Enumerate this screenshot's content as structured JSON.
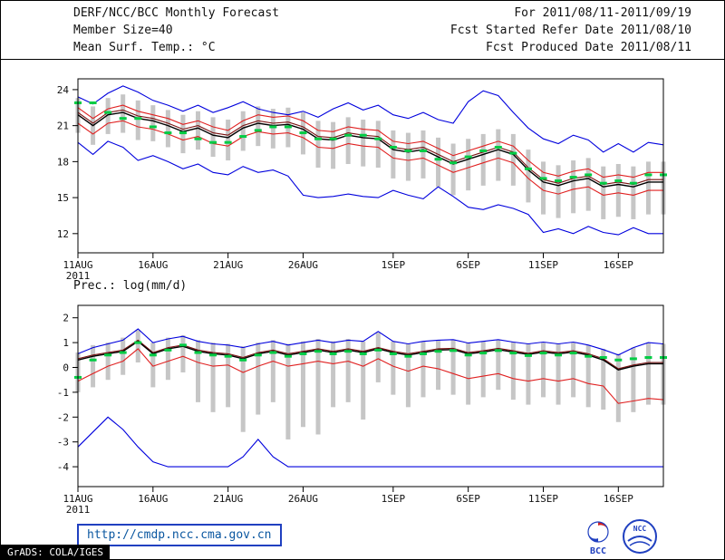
{
  "header": {
    "title": "DERF/NCC/BCC Monthly Forecast",
    "member_size": "Member Size=40",
    "var1_label": "Mean Surf. Temp.: °C",
    "for_range": "For 2011/08/11-2011/09/19",
    "refer_date": "Fcst Started Refer Date 2011/08/10",
    "produced_date": "Fcst Produced Date 2011/08/11"
  },
  "footer": {
    "url": "http://cmdp.ncc.cma.gov.cn",
    "grads_credit": "GrADS: COLA/IGES",
    "logos": [
      {
        "name": "bcc-logo",
        "label": "BCC"
      },
      {
        "name": "ncc-logo",
        "label": "NCC"
      }
    ]
  },
  "colors": {
    "envelope_blue": "#0000dd",
    "tercile_red": "#e02020",
    "control_maroon": "#7a1010",
    "mean_black": "#000000",
    "obs_green": "#00cc44",
    "spread_gray": "#c6c6c6",
    "link_blue": "#2040c0"
  },
  "chart_data": [
    {
      "type": "line",
      "title": "Mean Surf. Temp.: °C",
      "grid": false,
      "legend": false,
      "ylim": [
        10.4,
        24.9
      ],
      "yticks": [
        12,
        15,
        18,
        21,
        24
      ],
      "n_points": 40,
      "x_ticks": [
        {
          "day": 0,
          "label": "11AUG",
          "sublabel": "2011"
        },
        {
          "day": 5,
          "label": "16AUG"
        },
        {
          "day": 10,
          "label": "21AUG"
        },
        {
          "day": 15,
          "label": "26AUG"
        },
        {
          "day": 21,
          "label": "1SEP"
        },
        {
          "day": 26,
          "label": "6SEP"
        },
        {
          "day": 31,
          "label": "11SEP"
        },
        {
          "day": 36,
          "label": "16SEP"
        }
      ],
      "bars": {
        "name": "ensemble-spread",
        "color": "#c6c6c6",
        "high": [
          23.3,
          22.6,
          23.3,
          23.6,
          23.1,
          22.7,
          22.3,
          21.9,
          22.2,
          21.7,
          21.5,
          22.2,
          22.6,
          22.4,
          22.5,
          22.1,
          21.4,
          21.3,
          21.7,
          21.5,
          21.4,
          20.6,
          20.4,
          20.6,
          20.0,
          19.5,
          19.9,
          20.3,
          20.7,
          20.3,
          19.0,
          18.0,
          17.7,
          18.1,
          18.3,
          17.6,
          17.8,
          17.6,
          18.0,
          18.0
        ],
        "low": [
          20.4,
          19.4,
          20.3,
          20.4,
          19.8,
          19.7,
          19.2,
          18.7,
          19.0,
          18.4,
          18.1,
          18.9,
          19.3,
          19.1,
          19.2,
          18.6,
          17.5,
          17.4,
          17.8,
          17.6,
          17.5,
          16.6,
          16.4,
          16.6,
          15.9,
          15.2,
          15.6,
          16.0,
          16.4,
          16.0,
          14.6,
          13.6,
          13.3,
          13.7,
          13.9,
          13.2,
          13.4,
          13.2,
          13.6,
          13.6
        ]
      },
      "series": [
        {
          "name": "maximum",
          "color": "#0000dd",
          "width": 1.1,
          "values": [
            23.4,
            22.8,
            23.7,
            24.3,
            23.8,
            23.1,
            22.7,
            22.2,
            22.7,
            22.1,
            22.5,
            23.0,
            22.4,
            22.1,
            21.9,
            22.2,
            21.7,
            22.4,
            22.9,
            22.3,
            22.7,
            21.9,
            21.6,
            22.1,
            21.5,
            21.2,
            23.0,
            23.9,
            23.5,
            22.1,
            20.8,
            19.9,
            19.5,
            20.2,
            19.8,
            18.8,
            19.5,
            18.8,
            19.6,
            19.4
          ]
        },
        {
          "name": "upper-tercile",
          "color": "#e02020",
          "width": 1.1,
          "values": [
            22.5,
            21.6,
            22.4,
            22.7,
            22.2,
            21.9,
            21.6,
            21.1,
            21.4,
            20.9,
            20.6,
            21.4,
            21.9,
            21.7,
            21.8,
            21.4,
            20.6,
            20.5,
            20.9,
            20.7,
            20.6,
            19.7,
            19.5,
            19.7,
            19.1,
            18.5,
            18.9,
            19.3,
            19.7,
            19.3,
            18.1,
            17.1,
            16.8,
            17.2,
            17.4,
            16.7,
            16.9,
            16.7,
            17.1,
            17.1
          ]
        },
        {
          "name": "control-run",
          "color": "#7a1010",
          "width": 1.1,
          "values": [
            22.1,
            21.2,
            22.1,
            22.3,
            21.8,
            21.6,
            21.2,
            20.7,
            21.0,
            20.4,
            20.2,
            21.0,
            21.4,
            21.2,
            21.3,
            20.9,
            20.1,
            20.0,
            20.4,
            20.2,
            20.1,
            19.2,
            19.0,
            19.2,
            18.6,
            18.0,
            18.4,
            18.8,
            19.2,
            18.8,
            17.5,
            16.5,
            16.2,
            16.6,
            16.8,
            16.1,
            16.3,
            16.1,
            16.5,
            16.5
          ]
        },
        {
          "name": "ensemble-mean",
          "color": "#000000",
          "width": 1.4,
          "values": [
            21.9,
            21.0,
            21.9,
            22.1,
            21.6,
            21.4,
            21.0,
            20.5,
            20.8,
            20.2,
            20.0,
            20.8,
            21.2,
            21.0,
            21.1,
            20.7,
            19.9,
            19.8,
            20.2,
            20.0,
            19.9,
            19.0,
            18.8,
            19.0,
            18.4,
            17.8,
            18.2,
            18.6,
            19.0,
            18.6,
            17.3,
            16.3,
            16.0,
            16.4,
            16.6,
            15.9,
            16.1,
            15.9,
            16.3,
            16.3
          ]
        },
        {
          "name": "lower-tercile",
          "color": "#e02020",
          "width": 1.1,
          "values": [
            21.2,
            20.3,
            21.2,
            21.4,
            20.9,
            20.7,
            20.3,
            19.8,
            20.1,
            19.5,
            19.3,
            20.1,
            20.5,
            20.3,
            20.4,
            20.0,
            19.2,
            19.1,
            19.5,
            19.3,
            19.2,
            18.3,
            18.1,
            18.3,
            17.7,
            17.1,
            17.5,
            17.9,
            18.3,
            17.9,
            16.6,
            15.6,
            15.3,
            15.7,
            15.9,
            15.2,
            15.4,
            15.2,
            15.6,
            15.6
          ]
        },
        {
          "name": "minimum",
          "color": "#0000dd",
          "width": 1.1,
          "values": [
            19.6,
            18.6,
            19.7,
            19.2,
            18.1,
            18.5,
            18.0,
            17.4,
            17.8,
            17.1,
            16.9,
            17.6,
            17.1,
            17.3,
            16.8,
            15.2,
            15.0,
            15.1,
            15.3,
            15.1,
            15.0,
            15.6,
            15.2,
            14.9,
            15.9,
            15.1,
            14.2,
            14.0,
            14.4,
            14.1,
            13.6,
            12.1,
            12.4,
            12.0,
            12.6,
            12.1,
            11.9,
            12.5,
            12.0,
            12.0
          ]
        }
      ],
      "dashes": {
        "name": "observation",
        "color": "#00cc44",
        "values": [
          22.9,
          22.9,
          22.1,
          21.6,
          21.6,
          20.9,
          20.4,
          20.4,
          19.9,
          19.6,
          19.6,
          20.1,
          20.6,
          20.9,
          20.9,
          20.4,
          19.9,
          19.9,
          20.2,
          20.2,
          19.9,
          19.2,
          18.9,
          18.9,
          18.2,
          17.9,
          18.4,
          18.9,
          19.2,
          18.7,
          17.4,
          16.6,
          16.4,
          16.7,
          16.9,
          16.2,
          16.4,
          16.2,
          16.9,
          16.9
        ]
      }
    },
    {
      "type": "line",
      "title": "Prec.: log(mm/d)",
      "grid": false,
      "legend": false,
      "ylim": [
        -4.8,
        2.5
      ],
      "yticks": [
        -4,
        -3,
        -2,
        -1,
        0,
        1,
        2
      ],
      "n_points": 40,
      "x_ticks": [
        {
          "day": 0,
          "label": "11AUG",
          "sublabel": "2011"
        },
        {
          "day": 5,
          "label": "16AUG"
        },
        {
          "day": 10,
          "label": "21AUG"
        },
        {
          "day": 15,
          "label": "26AUG"
        },
        {
          "day": 21,
          "label": "1SEP"
        },
        {
          "day": 26,
          "label": "6SEP"
        },
        {
          "day": 31,
          "label": "11SEP"
        },
        {
          "day": 36,
          "label": "16SEP"
        }
      ],
      "bars": {
        "name": "ensemble-spread",
        "color": "#c6c6c6",
        "high": [
          0.6,
          0.9,
          1.0,
          1.2,
          1.5,
          1.0,
          1.2,
          1.3,
          1.1,
          1.0,
          0.95,
          0.85,
          1.0,
          1.1,
          0.95,
          1.05,
          1.15,
          1.05,
          1.15,
          1.05,
          1.4,
          1.05,
          0.95,
          1.05,
          1.1,
          1.12,
          1.0,
          1.05,
          1.12,
          1.02,
          0.95,
          1.0,
          0.95,
          1.0,
          0.9,
          0.75,
          0.55,
          0.8,
          1.0,
          0.95
        ],
        "low": [
          -1.0,
          -0.8,
          -0.5,
          -0.3,
          0.2,
          -0.8,
          -0.5,
          -0.2,
          -1.4,
          -1.8,
          -1.6,
          -2.6,
          -1.9,
          -1.4,
          -2.9,
          -2.4,
          -2.7,
          -1.6,
          -1.4,
          -2.1,
          -0.6,
          -1.1,
          -1.6,
          -1.2,
          -0.9,
          -1.1,
          -1.5,
          -1.2,
          -0.9,
          -1.3,
          -1.5,
          -1.2,
          -1.5,
          -1.2,
          -1.6,
          -1.7,
          -2.2,
          -1.8,
          -1.5,
          -1.5
        ]
      },
      "series": [
        {
          "name": "maximum",
          "color": "#0000dd",
          "width": 1.1,
          "values": [
            0.55,
            0.8,
            0.95,
            1.1,
            1.55,
            1.0,
            1.15,
            1.25,
            1.05,
            0.95,
            0.9,
            0.8,
            0.95,
            1.05,
            0.9,
            1.0,
            1.1,
            1.0,
            1.1,
            1.05,
            1.45,
            1.05,
            0.95,
            1.05,
            1.1,
            1.12,
            0.98,
            1.05,
            1.12,
            1.02,
            0.95,
            1.02,
            0.95,
            1.02,
            0.9,
            0.72,
            0.5,
            0.8,
            1.0,
            0.95
          ]
        },
        {
          "name": "control-run",
          "color": "#7a1010",
          "width": 1.1,
          "values": [
            0.35,
            0.5,
            0.6,
            0.7,
            1.1,
            0.6,
            0.8,
            0.9,
            0.7,
            0.6,
            0.55,
            0.4,
            0.6,
            0.7,
            0.55,
            0.65,
            0.75,
            0.65,
            0.75,
            0.65,
            0.8,
            0.65,
            0.55,
            0.65,
            0.75,
            0.77,
            0.6,
            0.67,
            0.77,
            0.67,
            0.57,
            0.67,
            0.6,
            0.67,
            0.55,
            0.35,
            -0.05,
            0.1,
            0.2,
            0.2
          ]
        },
        {
          "name": "ensemble-mean",
          "color": "#000000",
          "width": 1.4,
          "values": [
            0.3,
            0.45,
            0.55,
            0.65,
            1.05,
            0.55,
            0.75,
            0.85,
            0.65,
            0.55,
            0.5,
            0.35,
            0.55,
            0.65,
            0.5,
            0.6,
            0.7,
            0.6,
            0.7,
            0.6,
            0.75,
            0.6,
            0.5,
            0.6,
            0.7,
            0.72,
            0.55,
            0.62,
            0.72,
            0.62,
            0.52,
            0.62,
            0.55,
            0.62,
            0.5,
            0.3,
            -0.1,
            0.05,
            0.15,
            0.15
          ]
        },
        {
          "name": "lower-tercile",
          "color": "#e02020",
          "width": 1.1,
          "values": [
            -0.55,
            -0.25,
            0.05,
            0.25,
            0.75,
            0.05,
            0.25,
            0.45,
            0.2,
            0.05,
            0.1,
            -0.2,
            0.05,
            0.25,
            0.05,
            0.15,
            0.25,
            0.15,
            0.25,
            0.05,
            0.35,
            0.05,
            -0.15,
            0.05,
            -0.05,
            -0.25,
            -0.45,
            -0.35,
            -0.25,
            -0.45,
            -0.55,
            -0.45,
            -0.55,
            -0.45,
            -0.65,
            -0.75,
            -1.45,
            -1.35,
            -1.25,
            -1.3
          ]
        },
        {
          "name": "minimum",
          "color": "#0000dd",
          "width": 1.1,
          "values": [
            -3.2,
            -2.6,
            -2.0,
            -2.5,
            -3.2,
            -3.8,
            -4.0,
            -4.0,
            -4.0,
            -4.0,
            -4.0,
            -3.6,
            -2.9,
            -3.6,
            -4.0,
            -4.0,
            -4.0,
            -4.0,
            -4.0,
            -4.0,
            -4.0,
            -4.0,
            -4.0,
            -4.0,
            -4.0,
            -4.0,
            -4.0,
            -4.0,
            -4.0,
            -4.0,
            -4.0,
            -4.0,
            -4.0,
            -4.0,
            -4.0,
            -4.0,
            -4.0,
            -4.0,
            -4.0,
            -4.0
          ]
        }
      ],
      "dashes": {
        "name": "observation",
        "color": "#00cc44",
        "values": [
          -0.4,
          0.3,
          0.5,
          0.6,
          1.0,
          0.5,
          0.7,
          0.9,
          0.6,
          0.5,
          0.45,
          0.3,
          0.5,
          0.6,
          0.45,
          0.55,
          0.65,
          0.55,
          0.65,
          0.55,
          0.7,
          0.55,
          0.45,
          0.55,
          0.65,
          0.68,
          0.5,
          0.58,
          0.68,
          0.58,
          0.48,
          0.58,
          0.5,
          0.58,
          0.45,
          0.4,
          0.3,
          0.35,
          0.4,
          0.4
        ]
      }
    }
  ]
}
